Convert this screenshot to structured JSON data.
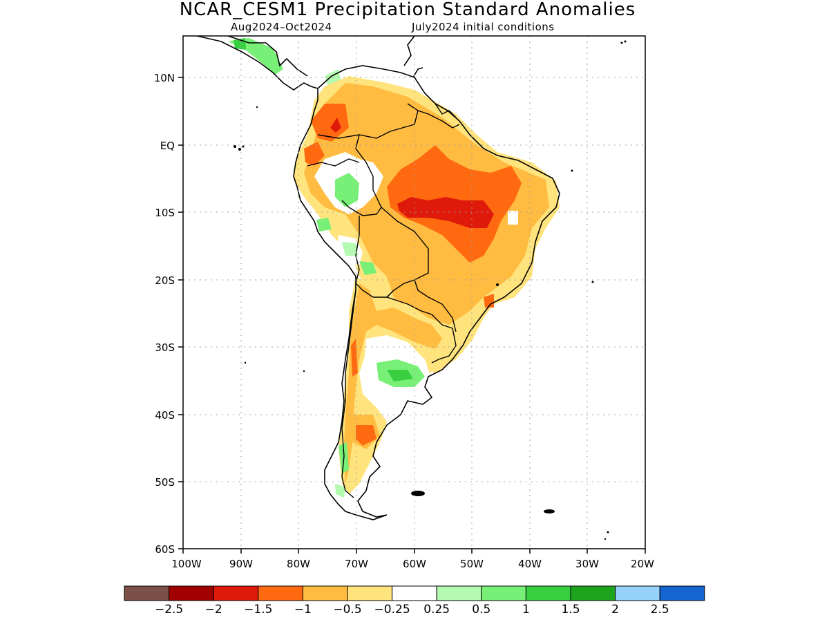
{
  "title": "NCAR_CESM1 Precipitation Standard Anomalies",
  "subtitle_left": "Aug2024–Oct2024",
  "subtitle_right": "July2024 initial conditions",
  "map": {
    "lat_range": [
      -60,
      5
    ],
    "lon_range": [
      -100,
      -20
    ],
    "lat_ticks": [
      "10N",
      "EQ",
      "10S",
      "20S",
      "30S",
      "40S",
      "50S",
      "60S"
    ],
    "lon_ticks": [
      "100W",
      "90W",
      "80W",
      "70W",
      "60W",
      "50W",
      "40W",
      "30W",
      "20W"
    ]
  },
  "colorbar": {
    "colors": [
      "#7b5046",
      "#a00000",
      "#e01a0a",
      "#ff6a10",
      "#ffbc40",
      "#ffe37c",
      "#ffffff",
      "#b4fab0",
      "#78f078",
      "#38d040",
      "#1ea51e",
      "#96d2fa",
      "#1464d2"
    ],
    "labels": [
      "−2.5",
      "−2",
      "−1.5",
      "−1",
      "−0.5",
      "−0.25",
      "0.25",
      "0.5",
      "1",
      "1.5",
      "2",
      "2.5"
    ]
  }
}
